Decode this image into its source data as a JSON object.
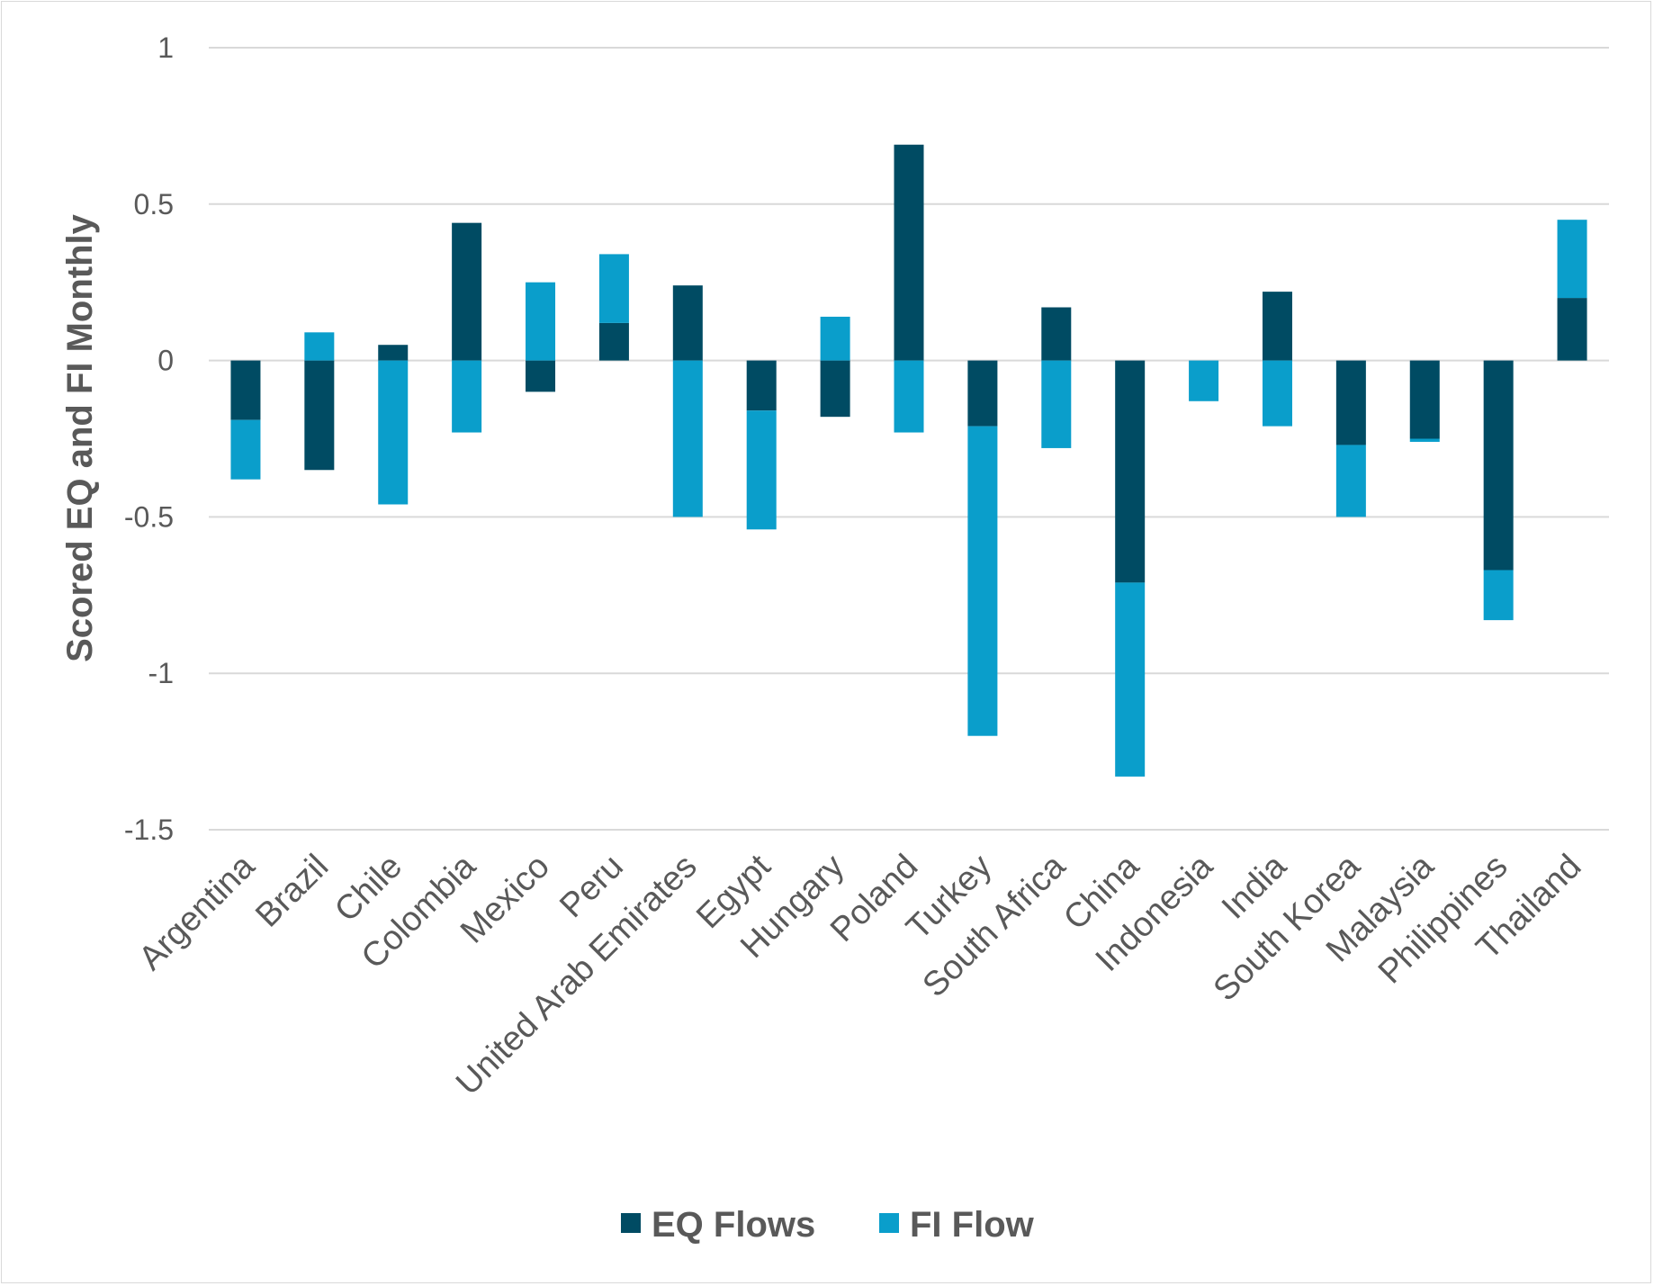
{
  "chart_data": {
    "type": "bar",
    "stacked": true,
    "title": "",
    "xlabel": "",
    "ylabel": "Scored EQ and FI Monthly",
    "ylim": [
      -1.5,
      1
    ],
    "yticks": [
      1,
      0.5,
      0,
      -0.5,
      -1,
      -1.5
    ],
    "ytick_labels": [
      "1",
      "0.5",
      "0",
      "-0.5",
      "-1",
      "-1.5"
    ],
    "grid": true,
    "legend_position": "bottom",
    "categories": [
      "Argentina",
      "Brazil",
      "Chile",
      "Colombia",
      "Mexico",
      "Peru",
      "United Arab Emirates",
      "Egypt",
      "Hungary",
      "Poland",
      "Turkey",
      "South Africa",
      "China",
      "Indonesia",
      "India",
      "South Korea",
      "Malaysia",
      "Philippines",
      "Thailand"
    ],
    "series": [
      {
        "name": "EQ Flows",
        "color": "#004b63",
        "values": [
          -0.19,
          -0.35,
          0.05,
          0.44,
          -0.1,
          0.12,
          0.24,
          -0.16,
          -0.18,
          0.69,
          -0.21,
          0.17,
          -0.71,
          0.0,
          0.22,
          -0.27,
          -0.25,
          -0.67,
          0.2
        ]
      },
      {
        "name": "FI Flow",
        "color": "#0a9ecb",
        "values": [
          -0.19,
          0.09,
          -0.46,
          -0.23,
          0.25,
          0.22,
          -0.5,
          -0.38,
          0.14,
          -0.23,
          -0.99,
          -0.28,
          -0.62,
          -0.13,
          -0.21,
          -0.23,
          -0.01,
          -0.16,
          0.25
        ]
      }
    ]
  }
}
